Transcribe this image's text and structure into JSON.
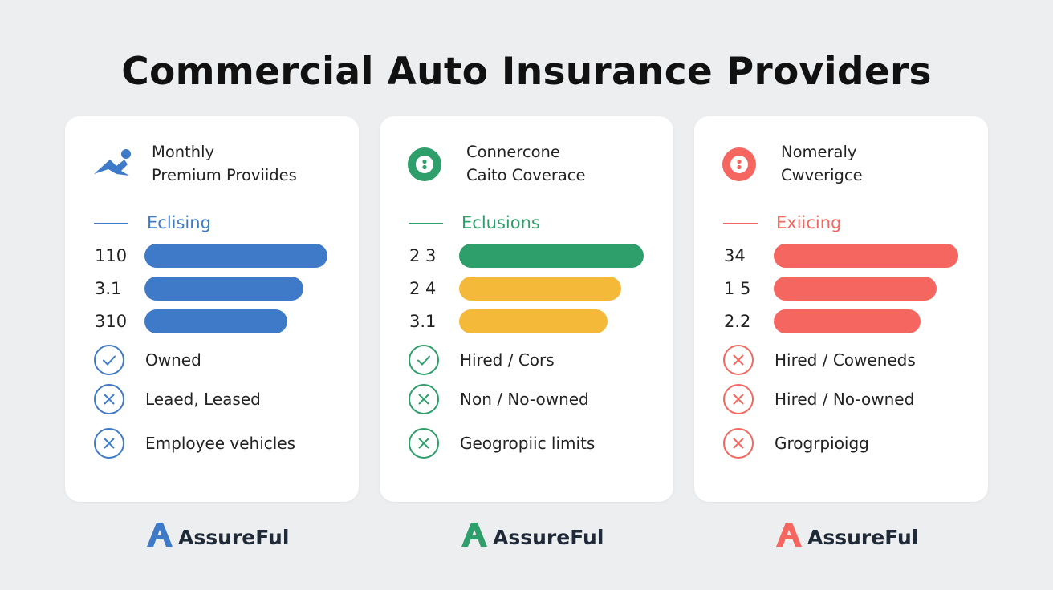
{
  "title": "Commercial Auto Insurance Providers",
  "cards": [
    {
      "color": "#3f7ac8",
      "bar_colors": [
        "#3f7ac8",
        "#3f7ac8",
        "#3f7ac8"
      ],
      "header": [
        "Monthly",
        "Premium Proviides"
      ],
      "section": "Eclising",
      "rows": [
        110,
        3.1,
        310
      ],
      "items": [
        "Owned",
        "Leaed, Leased",
        "Employee vehicles"
      ],
      "brand": "AssureFul"
    },
    {
      "color": "#2e9e6a",
      "bar_colors": [
        "#2e9e6a",
        "#f5b93a",
        "#f5b93a"
      ],
      "header": [
        "Connercone",
        "Caito Coverace"
      ],
      "section": "Eclusions",
      "rows": [
        "2 3",
        "2 4",
        3.1
      ],
      "items": [
        "Hired / Cors",
        "Non / No-owned",
        "Geogropiic limits"
      ],
      "brand": "AssureFul"
    },
    {
      "color": "#f4665f",
      "bar_colors": [
        "#f4665f",
        "#f4665f",
        "#f4665f"
      ],
      "header": [
        "Nomeraly",
        "Cwverigce"
      ],
      "section": "Exiicing",
      "rows": [
        34,
        "1 5",
        2.2
      ],
      "items": [
        "Hired / Coweneds",
        "Hired / No-owned",
        "Grogrpioigg"
      ],
      "brand": "AssureFul"
    }
  ]
}
